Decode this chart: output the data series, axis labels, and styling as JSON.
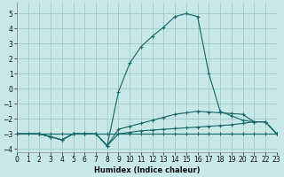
{
  "xlabel": "Humidex (Indice chaleur)",
  "xlim": [
    0,
    23
  ],
  "ylim": [
    -4.2,
    5.7
  ],
  "yticks": [
    -4,
    -3,
    -2,
    -1,
    0,
    1,
    2,
    3,
    4,
    5
  ],
  "xticks": [
    0,
    1,
    2,
    3,
    4,
    5,
    6,
    7,
    8,
    9,
    10,
    11,
    12,
    13,
    14,
    15,
    16,
    17,
    18,
    19,
    20,
    21,
    22,
    23
  ],
  "bg_color": "#c8e8e8",
  "grid_color": "#a0cccc",
  "line_color": "#1a6b6b",
  "series": [
    {
      "x": [
        0,
        1,
        2,
        3,
        4,
        5,
        6,
        7,
        8,
        9,
        10,
        11,
        12,
        13,
        14,
        15,
        16,
        17,
        18,
        19,
        20,
        21,
        22,
        23
      ],
      "y": [
        -3.0,
        -3.0,
        -3.0,
        -3.0,
        -3.0,
        -3.0,
        -3.0,
        -3.0,
        -3.0,
        -3.0,
        -3.0,
        -3.0,
        -3.0,
        -3.0,
        -3.0,
        -3.0,
        -3.0,
        -3.0,
        -3.0,
        -3.0,
        -3.0,
        -3.0,
        -3.0,
        -3.0
      ]
    },
    {
      "x": [
        0,
        2,
        3,
        4,
        5,
        6,
        7,
        8,
        9,
        10,
        11,
        12,
        13,
        14,
        15,
        16,
        17,
        18,
        19,
        20,
        21,
        22,
        23
      ],
      "y": [
        -3.0,
        -3.0,
        -3.2,
        -3.4,
        -3.0,
        -3.0,
        -3.0,
        -3.8,
        -3.0,
        -2.9,
        -2.8,
        -2.75,
        -2.7,
        -2.65,
        -2.6,
        -2.55,
        -2.5,
        -2.45,
        -2.4,
        -2.3,
        -2.2,
        -2.2,
        -3.0
      ]
    },
    {
      "x": [
        0,
        2,
        3,
        4,
        5,
        6,
        7,
        8,
        9,
        10,
        11,
        12,
        13,
        14,
        15,
        16,
        17,
        18,
        19,
        20,
        21,
        22,
        23
      ],
      "y": [
        -3.0,
        -3.0,
        -3.2,
        -3.4,
        -3.0,
        -3.0,
        -3.0,
        -3.8,
        -0.2,
        1.7,
        2.8,
        3.5,
        4.1,
        4.8,
        5.0,
        4.8,
        1.0,
        -1.5,
        -1.8,
        -2.1,
        -2.2,
        -2.2,
        -3.0
      ]
    },
    {
      "x": [
        0,
        2,
        3,
        4,
        5,
        6,
        7,
        8,
        9,
        10,
        11,
        12,
        13,
        14,
        15,
        16,
        17,
        18,
        19,
        20,
        21,
        22,
        23
      ],
      "y": [
        -3.0,
        -3.0,
        -3.2,
        -3.4,
        -3.0,
        -3.0,
        -3.0,
        -3.8,
        -2.7,
        -2.5,
        -2.3,
        -2.1,
        -1.9,
        -1.7,
        -1.6,
        -1.5,
        -1.55,
        -1.6,
        -1.65,
        -1.7,
        -2.2,
        -2.2,
        -3.0
      ]
    }
  ]
}
